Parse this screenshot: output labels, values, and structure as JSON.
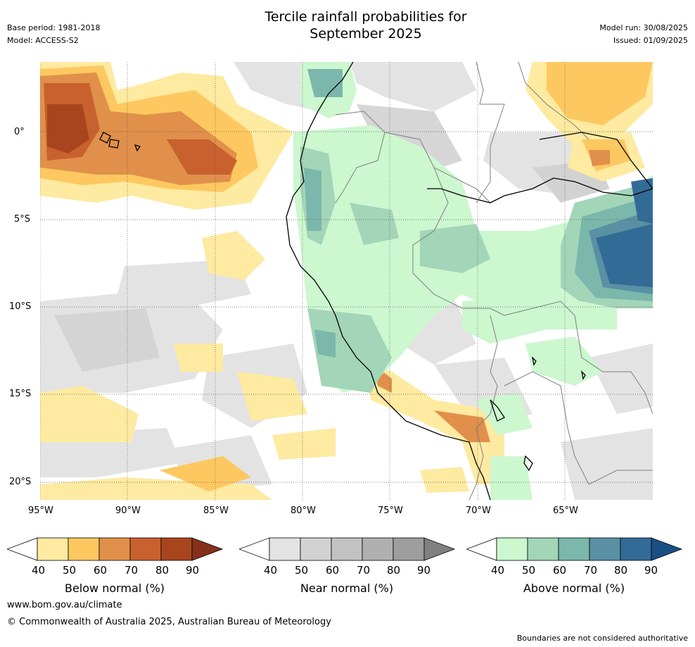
{
  "header": {
    "title_line1": "Tercile rainfall probabilities for",
    "title_line2": "September 2025",
    "base_period": "Base period: 1981-2018",
    "model": "Model: ACCESS-S2",
    "model_run": "Model run: 30/08/2025",
    "issued": "Issued: 01/09/2025"
  },
  "map": {
    "lat_labels": [
      "0°",
      "5°S",
      "10°S",
      "15°S",
      "20°S"
    ],
    "lon_labels": [
      "95°W",
      "90°W",
      "85°W",
      "80°W",
      "75°W",
      "70°W",
      "65°W"
    ]
  },
  "colorbars": [
    {
      "label": "Below normal (%)",
      "ticks": [
        "40",
        "50",
        "60",
        "70",
        "80",
        "90"
      ],
      "colors": [
        "#ffffff",
        "#feeaa0",
        "#fdc860",
        "#e0904a",
        "#c8612e",
        "#a8451e",
        "#86301a"
      ]
    },
    {
      "label": "Near normal (%)",
      "ticks": [
        "40",
        "50",
        "60",
        "70",
        "80",
        "90"
      ],
      "colors": [
        "#ffffff",
        "#e3e3e3",
        "#d2d2d2",
        "#c2c2c2",
        "#b0b0b0",
        "#9e9e9e",
        "#808080"
      ]
    },
    {
      "label": "Above normal (%)",
      "ticks": [
        "40",
        "50",
        "60",
        "70",
        "80",
        "90"
      ],
      "colors": [
        "#ffffff",
        "#ccf7cf",
        "#a3d5b8",
        "#7cb7ac",
        "#5990a3",
        "#336b97",
        "#1a4f86"
      ]
    }
  ],
  "footer": {
    "website": "www.bom.gov.au/climate",
    "copyright": "© Commonwealth of Australia 2025, Australian Bureau of Meteorology",
    "disclaimer": "Boundaries are not considered authoritative"
  }
}
